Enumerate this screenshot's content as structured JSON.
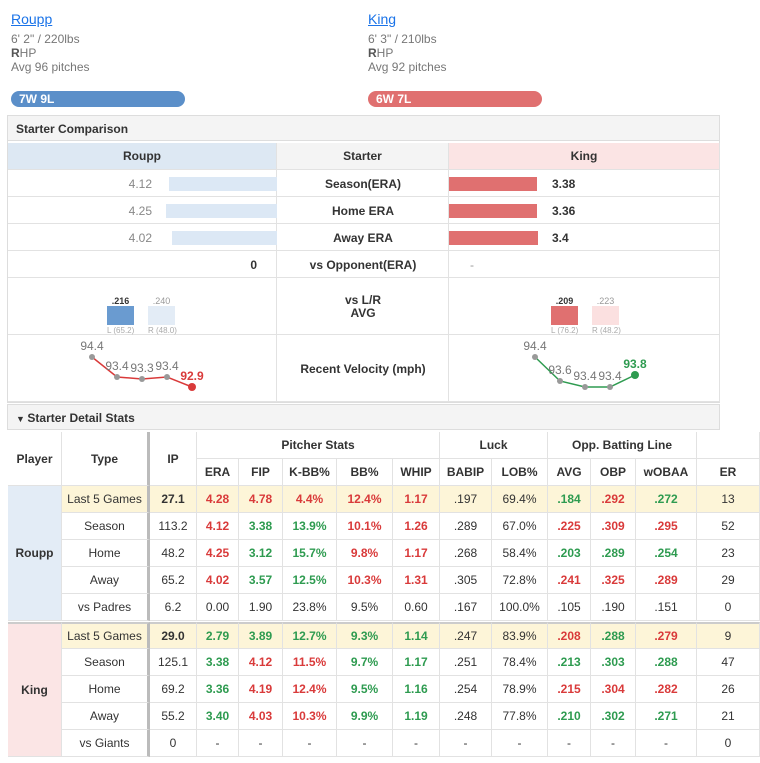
{
  "pitchers": [
    {
      "name": "Roupp",
      "size": "6' 2\" / 220lbs",
      "hand_initial": "R",
      "hand_rest": "HP",
      "avg_pitches": "Avg 96 pitches",
      "record": "7W 9L"
    },
    {
      "name": "King",
      "size": "6' 3\" / 210lbs",
      "hand_initial": "R",
      "hand_rest": "HP",
      "avg_pitches": "Avg 92 pitches",
      "record": "6W 7L"
    }
  ],
  "comparison": {
    "title": "Starter Comparison",
    "columns": [
      "Roupp",
      "Starter",
      "King"
    ],
    "rows": [
      {
        "label": "Season(ERA)",
        "left": 4.12,
        "right": 3.38
      },
      {
        "label": "Home ERA",
        "left": 4.25,
        "right": 3.36
      },
      {
        "label": "Away ERA",
        "left": 4.02,
        "right": 3.4
      },
      {
        "label": "vs Opponent(ERA)",
        "left": 0,
        "right": "-"
      }
    ],
    "splits": {
      "label_lines": [
        "vs L/R",
        "AVG"
      ],
      "left": [
        {
          "avg": ".216",
          "pa": "L (65.2)"
        },
        {
          "avg": ".240",
          "pa": "R (48.0)"
        }
      ],
      "right": [
        {
          "avg": ".209",
          "pa": "L (76.2)"
        },
        {
          "avg": ".223",
          "pa": "R (48.2)"
        }
      ]
    },
    "velocity": {
      "label": "Recent Velocity (mph)",
      "left": [
        94.4,
        93.4,
        93.3,
        93.4,
        92.9
      ],
      "right": [
        94.4,
        93.6,
        93.4,
        93.4,
        93.8
      ]
    }
  },
  "detail": {
    "title": "Starter Detail Stats",
    "headers": {
      "player": "Player",
      "type": "Type",
      "ip": "IP",
      "groups": [
        {
          "name": "Pitcher Stats",
          "columns": [
            "ERA",
            "FIP",
            "K-BB%",
            "BB%",
            "WHIP"
          ]
        },
        {
          "name": "Luck",
          "columns": [
            "BABIP",
            "LOB%"
          ]
        },
        {
          "name": "Opp. Batting Line",
          "columns": [
            "AVG",
            "OBP",
            "wOBAA"
          ]
        },
        {
          "columns": [
            "ER"
          ]
        }
      ]
    },
    "players": [
      {
        "name": "Roupp",
        "rows": [
          {
            "type": "Last 5 Games",
            "ip": "27.1",
            "stats": [
              "4.28",
              "4.78",
              "4.4%",
              "12.4%",
              "1.17",
              ".197",
              "69.4%",
              ".184",
              ".292",
              ".272",
              "13"
            ],
            "tones": "rrrrrnngrgn"
          },
          {
            "type": "Season",
            "ip": "113.2",
            "stats": [
              "4.12",
              "3.38",
              "13.9%",
              "10.1%",
              "1.26",
              ".289",
              "67.0%",
              ".225",
              ".309",
              ".295",
              "52"
            ],
            "tones": "rggrrnnrrrn"
          },
          {
            "type": "Home",
            "ip": "48.2",
            "stats": [
              "4.25",
              "3.12",
              "15.7%",
              "9.8%",
              "1.17",
              ".268",
              "58.4%",
              ".203",
              ".289",
              ".254",
              "23"
            ],
            "tones": "rggrrnngggn"
          },
          {
            "type": "Away",
            "ip": "65.2",
            "stats": [
              "4.02",
              "3.57",
              "12.5%",
              "10.3%",
              "1.31",
              ".305",
              "72.8%",
              ".241",
              ".325",
              ".289",
              "29"
            ],
            "tones": "rggrrnnrrrn"
          },
          {
            "type": "vs Padres",
            "ip": "6.2",
            "stats": [
              "0.00",
              "1.90",
              "23.8%",
              "9.5%",
              "0.60",
              ".167",
              "100.0%",
              ".105",
              ".190",
              ".151",
              "0"
            ],
            "tones": "nnnnnnnnnnn"
          }
        ]
      },
      {
        "name": "King",
        "rows": [
          {
            "type": "Last 5 Games",
            "ip": "29.0",
            "stats": [
              "2.79",
              "3.89",
              "12.7%",
              "9.3%",
              "1.14",
              ".247",
              "83.9%",
              ".208",
              ".288",
              ".279",
              "9"
            ],
            "tones": "gggggnnrgrn"
          },
          {
            "type": "Season",
            "ip": "125.1",
            "stats": [
              "3.38",
              "4.12",
              "11.5%",
              "9.7%",
              "1.17",
              ".251",
              "78.4%",
              ".213",
              ".303",
              ".288",
              "47"
            ],
            "tones": "grrggnngggn"
          },
          {
            "type": "Home",
            "ip": "69.2",
            "stats": [
              "3.36",
              "4.19",
              "12.4%",
              "9.5%",
              "1.16",
              ".254",
              "78.9%",
              ".215",
              ".304",
              ".282",
              "26"
            ],
            "tones": "grrggnnrrrn"
          },
          {
            "type": "Away",
            "ip": "55.2",
            "stats": [
              "3.40",
              "4.03",
              "10.3%",
              "9.9%",
              "1.19",
              ".248",
              "77.8%",
              ".210",
              ".302",
              ".271",
              "21"
            ],
            "tones": "grrggnngggn"
          },
          {
            "type": "vs Giants",
            "ip": "0",
            "stats": [
              "-",
              "-",
              "-",
              "-",
              "-",
              "-",
              "-",
              "-",
              "-",
              "-",
              "0"
            ],
            "tones": "nnnnnnnnnnn"
          }
        ]
      }
    ]
  }
}
